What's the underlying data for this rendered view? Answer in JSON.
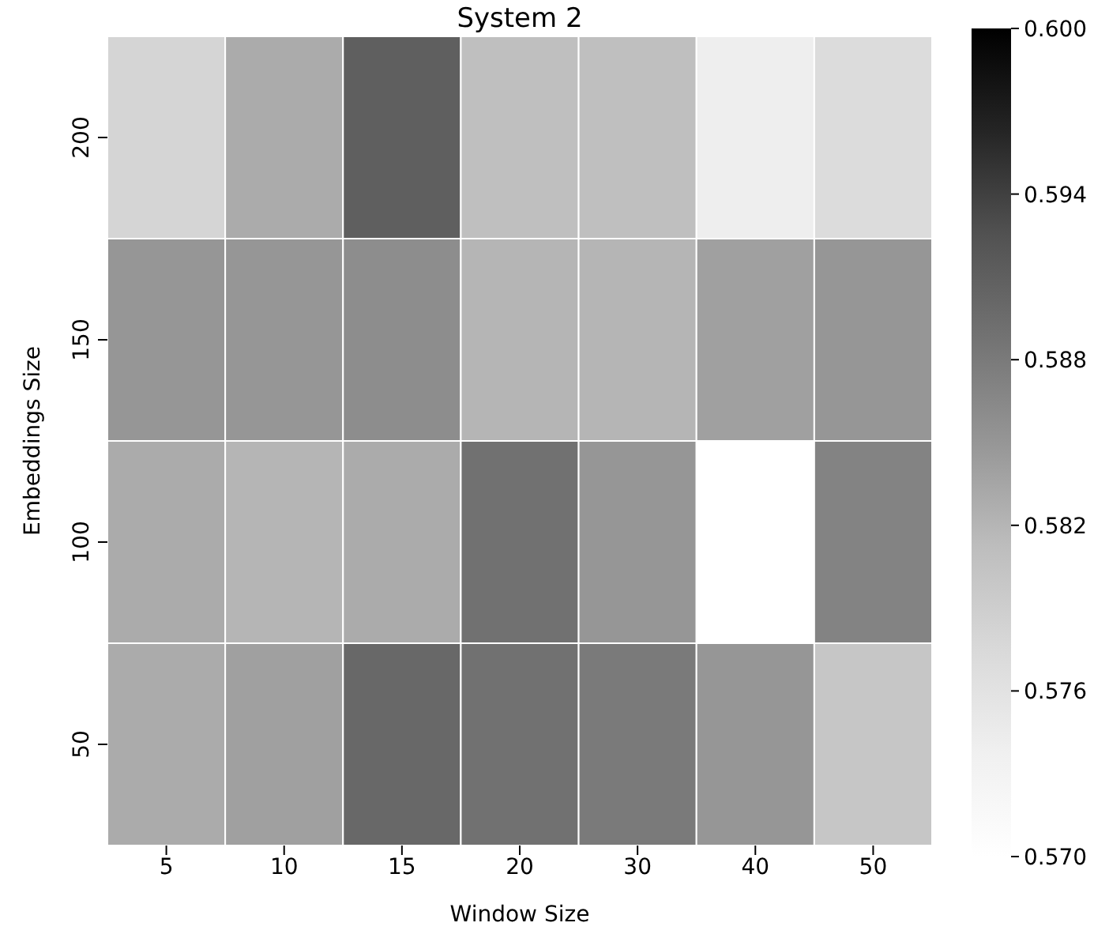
{
  "chart_data": {
    "type": "heatmap",
    "title": "System 2",
    "xlabel": "Window Size",
    "ylabel": "Embeddings Size",
    "categories": [
      "5",
      "10",
      "15",
      "20",
      "30",
      "40",
      "50"
    ],
    "y_categories": [
      "200",
      "150",
      "100",
      "50"
    ],
    "cells": [
      [
        0.578,
        0.583,
        0.591,
        0.581,
        0.581,
        0.574,
        0.577
      ],
      [
        0.585,
        0.585,
        0.586,
        0.582,
        0.582,
        0.584,
        0.585
      ],
      [
        0.583,
        0.582,
        0.583,
        0.589,
        0.585,
        0.57,
        0.587
      ],
      [
        0.583,
        0.584,
        0.59,
        0.589,
        0.588,
        0.585,
        0.58
      ]
    ],
    "clim": [
      0.57,
      0.6
    ],
    "cticks": [
      {
        "value": 0.57,
        "label": "0.570"
      },
      {
        "value": 0.576,
        "label": "0.576"
      },
      {
        "value": 0.582,
        "label": "0.582"
      },
      {
        "value": 0.588,
        "label": "0.588"
      },
      {
        "value": 0.594,
        "label": "0.594"
      },
      {
        "value": 0.6,
        "label": "0.600"
      }
    ]
  }
}
